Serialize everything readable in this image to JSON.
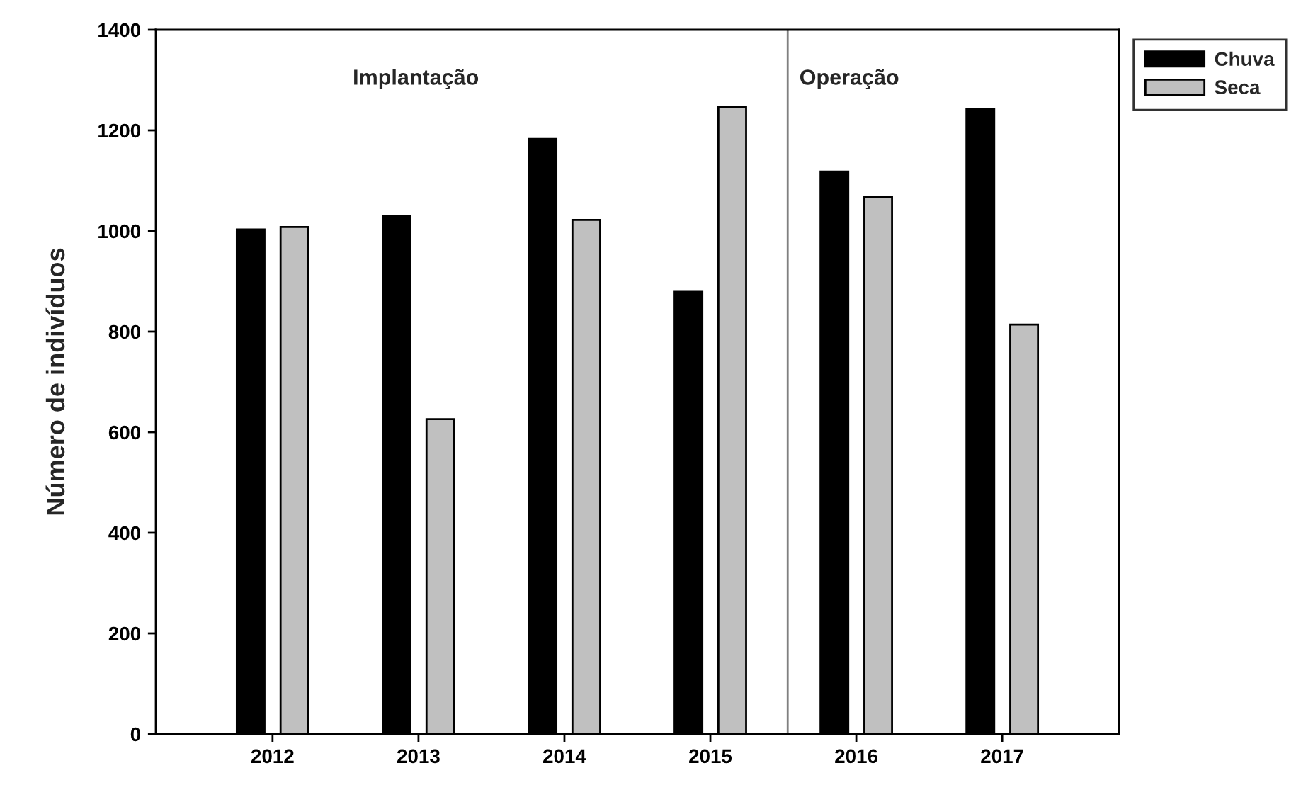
{
  "chart_data": {
    "type": "bar",
    "ylabel": "Número de indivíduos",
    "x": [
      2012,
      2013,
      2014,
      2015,
      2016,
      2017
    ],
    "xlim": [
      2011.2,
      2017.8
    ],
    "xticks": [
      2012,
      2013,
      2014,
      2015,
      2016,
      2017
    ],
    "ylim": [
      0,
      1400
    ],
    "yticks": [
      0,
      200,
      400,
      600,
      800,
      1000,
      1200,
      1400
    ],
    "series": [
      {
        "name": "Chuva",
        "color": "#000000",
        "values": [
          1003,
          1030,
          1183,
          879,
          1118,
          1242
        ]
      },
      {
        "name": "Seca",
        "color": "#c0c0c0",
        "values": [
          1008,
          626,
          1022,
          1246,
          1068,
          814
        ]
      }
    ],
    "ref_lines": [
      {
        "axis": "x",
        "value": 2015.53,
        "color": "#808080",
        "line_style": "solid"
      }
    ],
    "annotations": [
      "Implantação",
      "Operação"
    ],
    "legend": "top right",
    "grid": false
  }
}
